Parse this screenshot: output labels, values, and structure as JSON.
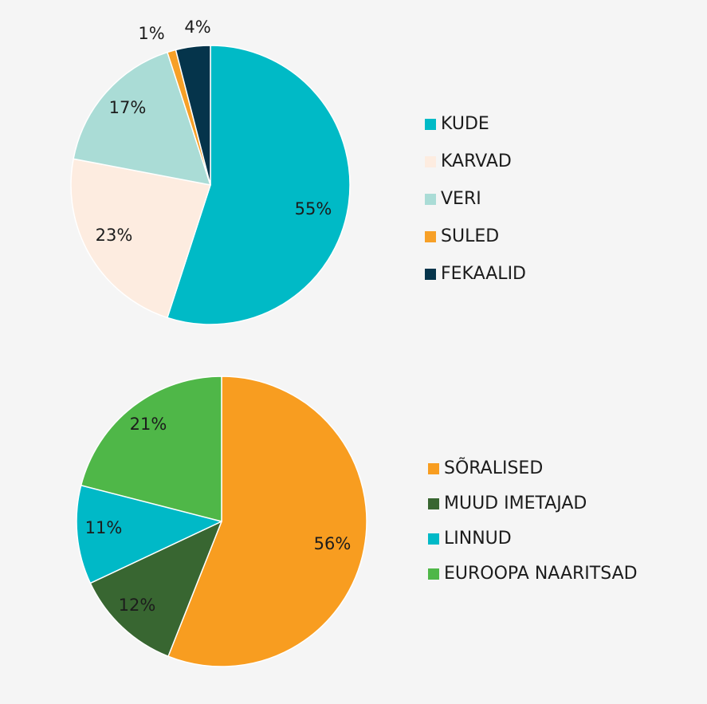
{
  "chart_data": [
    {
      "type": "pie",
      "title": "",
      "categories": [
        "KUDE",
        "KARVAD",
        "VERI",
        "SULED",
        "FEKAALID"
      ],
      "values": [
        55,
        23,
        17,
        1,
        4
      ],
      "data_labels": [
        "55%",
        "23%",
        "17%",
        "1%",
        "4%"
      ],
      "colors": [
        "#00bac6",
        "#fdece0",
        "#aadcd6",
        "#f7a027",
        "#05344b"
      ],
      "legend_position": "right"
    },
    {
      "type": "pie",
      "title": "",
      "categories": [
        "SÕRALISED",
        "MUUD IMETAJAD",
        "LINNUD",
        "EUROOPA NAARITSAD"
      ],
      "values": [
        56,
        12,
        11,
        21
      ],
      "data_labels": [
        "56%",
        "12%",
        "11%",
        "21%"
      ],
      "colors": [
        "#f89d20",
        "#386631",
        "#00b9c7",
        "#4fb748"
      ],
      "legend_position": "right"
    }
  ]
}
